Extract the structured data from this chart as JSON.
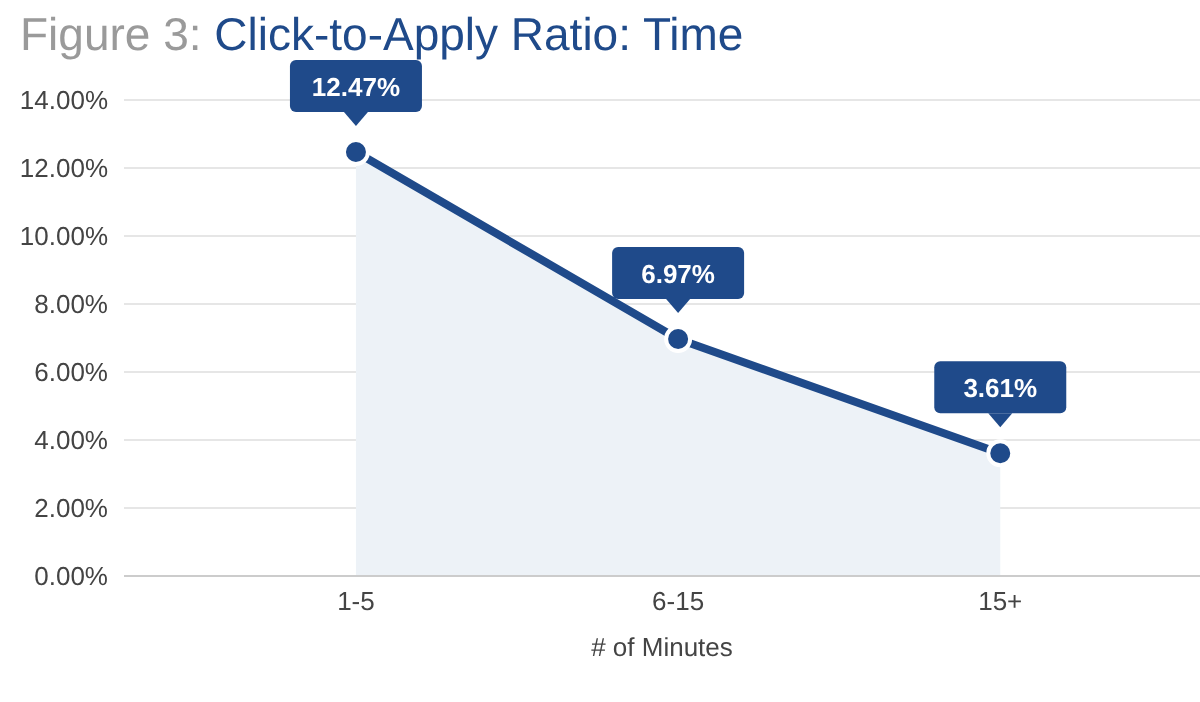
{
  "chart_data": {
    "type": "area",
    "title": "Figure 3:",
    "subtitle": "Click-to-Apply Ratio: Time",
    "xlabel": "# of Minutes",
    "categories": [
      "1-5",
      "6-15",
      "15+"
    ],
    "series": [
      {
        "color": "#1f4a8a",
        "values": [
          12.47,
          6.97,
          3.61
        ],
        "value_labels": [
          "12.47%",
          "6.97%",
          "3.61%"
        ]
      }
    ],
    "ylim": [
      0,
      14
    ],
    "yticks": [
      {
        "value": 0,
        "label": "0.00%"
      },
      {
        "value": 2,
        "label": "2.00%"
      },
      {
        "value": 4,
        "label": "4.00%"
      },
      {
        "value": 6,
        "label": "6.00%"
      },
      {
        "value": 8,
        "label": "8.00%"
      },
      {
        "value": 10,
        "label": "10.00%"
      },
      {
        "value": 12,
        "label": "12.00%"
      },
      {
        "value": 14,
        "label": "14.00%"
      }
    ],
    "grid": "y",
    "marker": "circle"
  }
}
